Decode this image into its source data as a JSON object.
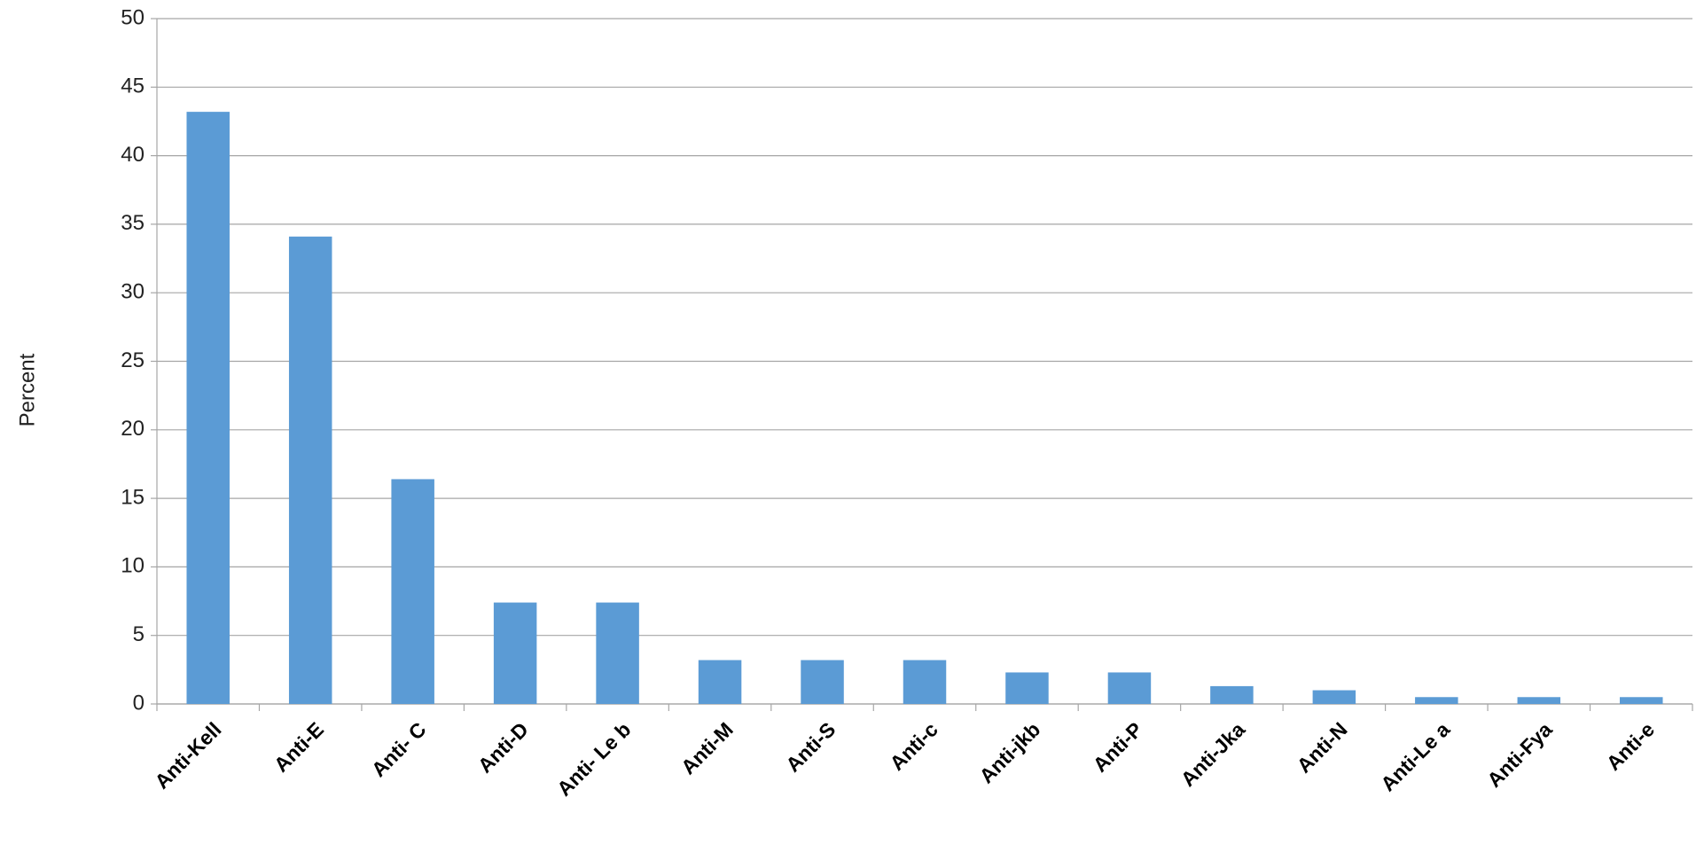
{
  "chart_data": {
    "type": "bar",
    "y_label": "Percent",
    "categories": [
      "Anti-Kell",
      "Anti-E",
      "Anti- C",
      "Anti-D",
      "Anti- Le b",
      "Anti-M",
      "Anti-S",
      "Anti-c",
      "Anti-jkb",
      "Anti-P",
      "Anti-Jka",
      "Anti-N",
      "Anti-Le a",
      "Anti-Fya",
      "Anti-e"
    ],
    "values": [
      43.2,
      34.1,
      16.4,
      7.4,
      7.4,
      3.2,
      3.2,
      3.2,
      2.3,
      2.3,
      1.3,
      1.0,
      0.5,
      0.5,
      0.5
    ],
    "color": "#5b9bd5",
    "ylim": [
      0,
      50
    ],
    "yticks": [
      0,
      5,
      10,
      15,
      20,
      25,
      30,
      35,
      40,
      45,
      50
    ],
    "grid": true
  }
}
